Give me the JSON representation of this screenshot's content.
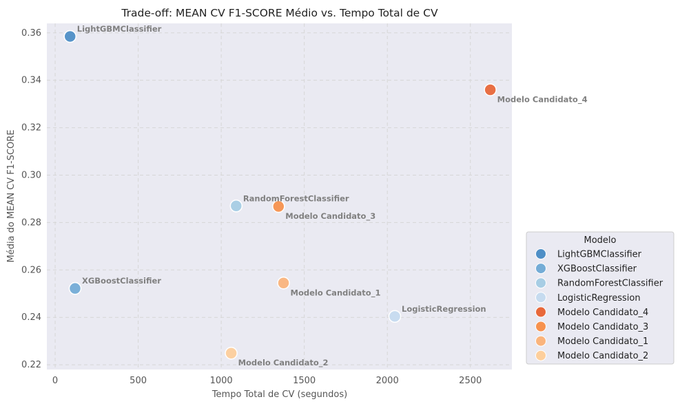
{
  "chart_data": {
    "type": "scatter",
    "title": "Trade-off: MEAN CV F1-SCORE Médio vs. Tempo Total de CV",
    "xlabel": "Tempo Total de CV (segundos)",
    "ylabel": "Média do MEAN CV F1-SCORE",
    "xlim": [
      -50,
      2750
    ],
    "ylim": [
      0.218,
      0.364
    ],
    "x_ticks": [
      0,
      500,
      1000,
      1500,
      2000,
      2500
    ],
    "y_ticks": [
      0.22,
      0.24,
      0.26,
      0.28,
      0.3,
      0.32,
      0.34,
      0.36
    ],
    "grid": true,
    "legend": {
      "title": "Modelo",
      "position": "right"
    },
    "series": [
      {
        "name": "LightGBMClassifier",
        "x": 90,
        "y": 0.3585,
        "color": "#4f8fc6",
        "label": "LightGBMClassifier",
        "label_pos": "above"
      },
      {
        "name": "XGBoostClassifier",
        "x": 120,
        "y": 0.2522,
        "color": "#74acd6",
        "label": "XGBoostClassifier",
        "label_pos": "above"
      },
      {
        "name": "RandomForestClassifier",
        "x": 1090,
        "y": 0.287,
        "color": "#a7cde4",
        "label": "RandomForestClassifier",
        "label_pos": "above"
      },
      {
        "name": "LogisticRegression",
        "x": 2045,
        "y": 0.2404,
        "color": "#c6dbef",
        "label": "LogisticRegression",
        "label_pos": "above"
      },
      {
        "name": "Modelo Candidato_4",
        "x": 2620,
        "y": 0.336,
        "color": "#e8683a",
        "label": "Modelo Candidato_4",
        "label_pos": "below"
      },
      {
        "name": "Modelo Candidato_3",
        "x": 1345,
        "y": 0.2868,
        "color": "#f7924e",
        "label": "Modelo Candidato_3",
        "label_pos": "below"
      },
      {
        "name": "Modelo Candidato_1",
        "x": 1375,
        "y": 0.2545,
        "color": "#fab47c",
        "label": "Modelo Candidato_1",
        "label_pos": "below"
      },
      {
        "name": "Modelo Candidato_2",
        "x": 1060,
        "y": 0.2249,
        "color": "#fdcf9c",
        "label": "Modelo Candidato_2",
        "label_pos": "below"
      }
    ]
  }
}
